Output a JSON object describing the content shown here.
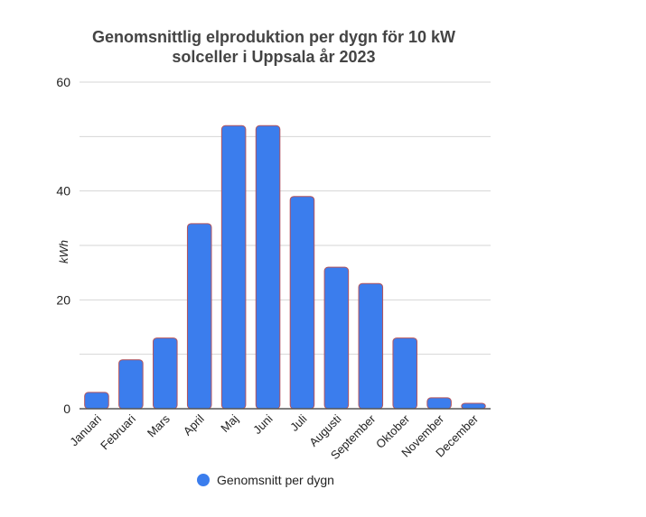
{
  "chart_data": {
    "type": "bar",
    "title_lines": [
      "Genomsnittlig elproduktion per dygn för 10 kW",
      "solceller i Uppsala år 2023"
    ],
    "ylabel": "kWh",
    "xlabel": "",
    "categories": [
      "Januari",
      "Februari",
      "Mars",
      "April",
      "Maj",
      "Juni",
      "Juli",
      "Augusti",
      "September",
      "Oktober",
      "November",
      "December"
    ],
    "series": [
      {
        "name": "Genomsnitt per dygn",
        "values": [
          3,
          9,
          13,
          34,
          52,
          52,
          39,
          26,
          23,
          13,
          2,
          1
        ]
      }
    ],
    "ylim": [
      0,
      60
    ],
    "yticks": [
      0,
      20,
      40,
      60
    ],
    "grid_step": 10,
    "grid": true,
    "legend_position": "bottom",
    "colors": {
      "bar": "#3b7ded",
      "bar_stroke": "#b4545c",
      "grid": "#d6d6d6",
      "axis": "#555555"
    }
  }
}
